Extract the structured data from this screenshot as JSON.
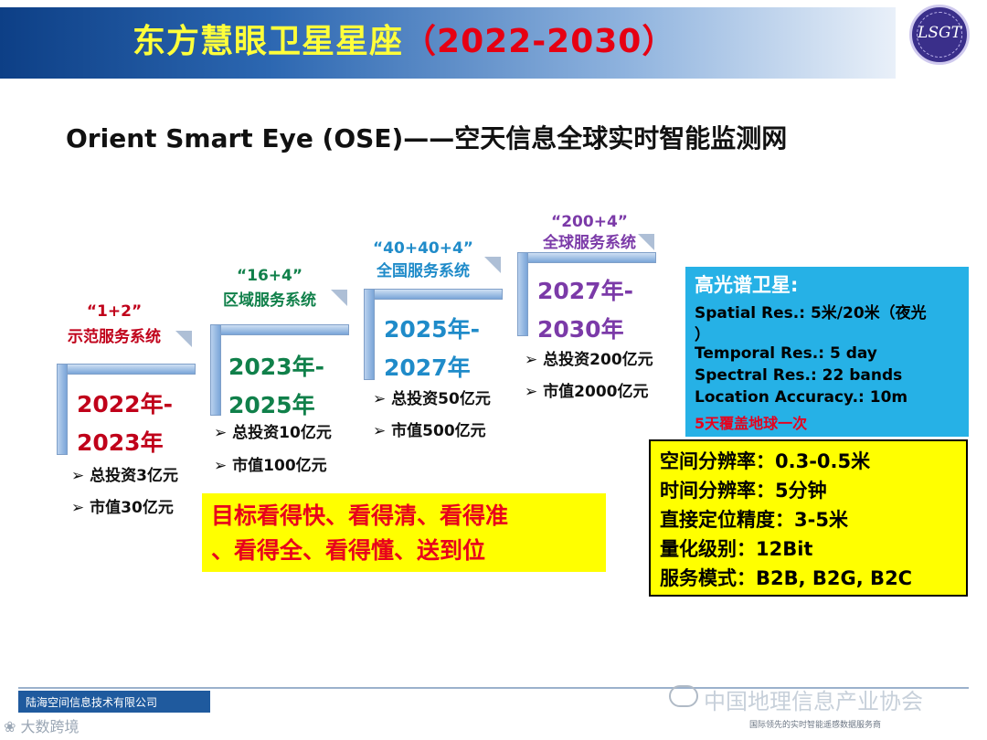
{
  "header": {
    "title_main": "东方慧眼卫星星座",
    "title_years": "（2022-2030）",
    "logo_text": "LSGT"
  },
  "subtitle": "Orient Smart Eye (OSE)——空天信息全球实时智能监测网",
  "stages": [
    {
      "config": "“1+2”",
      "system": "示范服务系统",
      "years_a": "2022年-",
      "years_b": "2023年",
      "investment": "总投资3亿元",
      "market_value": "市值30亿元"
    },
    {
      "config": "“16+4”",
      "system": "区域服务系统",
      "years_a": "2023年-",
      "years_b": "2025年",
      "investment": "总投资10亿元",
      "market_value": "市值100亿元"
    },
    {
      "config": "“40+40+4”",
      "system": "全国服务系统",
      "years_a": "2025年-",
      "years_b": "2027年",
      "investment": "总投资50亿元",
      "market_value": "市值500亿元"
    },
    {
      "config": "“200+4”",
      "system": "全球服务系统",
      "years_a": "2027年-",
      "years_b": "2030年",
      "investment": "总投资200亿元",
      "market_value": "市值2000亿元"
    }
  ],
  "goal": {
    "line1": "目标看得快、看得清、看得准",
    "line2": "、看得全、看得懂、送到位"
  },
  "hyperspectral": {
    "title": "高光谱卫星:",
    "spatial": "Spatial Res.: 5米/20米（夜光",
    "spatial_tail": "）",
    "temporal": "Temporal Res.: 5 day",
    "spectral": "Spectral Res.: 22 bands",
    "location": "Location Accuracy.: 10m",
    "coverage": "5天覆盖地球一次"
  },
  "specs": {
    "spatial": "空间分辨率：0.3-0.5米",
    "temporal": "时间分辨率：5分钟",
    "positioning": "直接定位精度：3-5米",
    "quantization": "量化级别：12Bit",
    "service": "服务模式：B2B, B2G, B2C"
  },
  "footer": {
    "company": "陆海空间信息技术有限公司",
    "watermark_left": "大数跨境",
    "watermark_right": "中国地理信息产业协会",
    "slogan": "国际领先的实时智能遥感数据服务商"
  },
  "colors": {
    "stage1": "#c0001a",
    "stage2": "#10804a",
    "stage3": "#1f8bc9",
    "stage4": "#7b3aa8",
    "title_yellow": "#ffff3a",
    "highlight_yellow": "#ffff00",
    "info_blue": "#26b1e6"
  }
}
